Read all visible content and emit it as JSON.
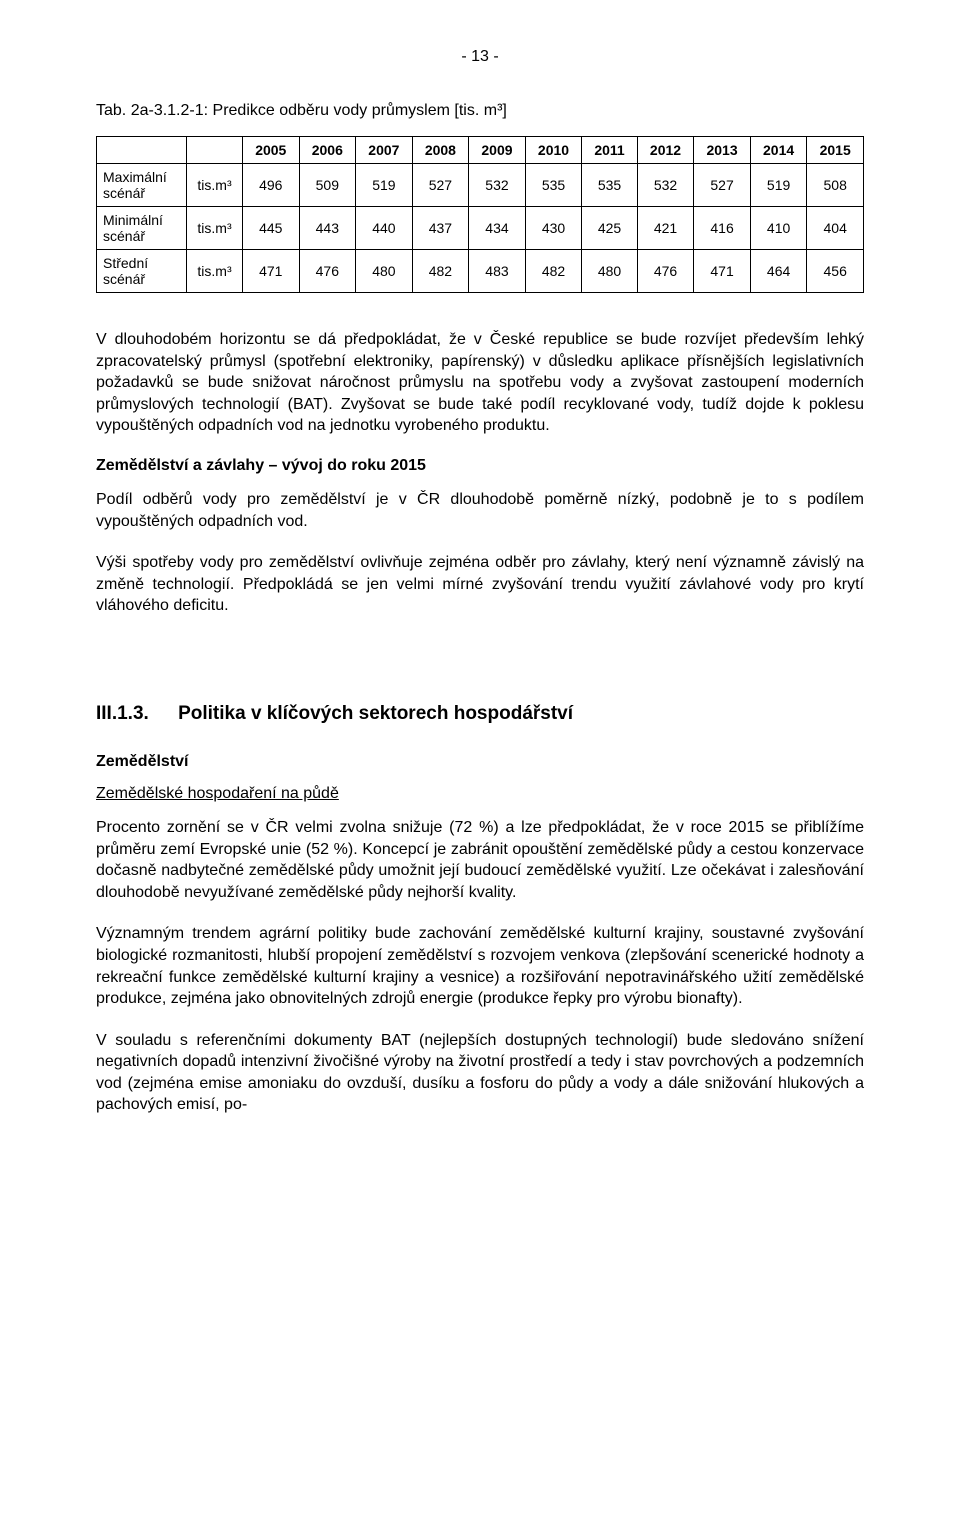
{
  "header": {
    "page_number": "- 13 -"
  },
  "table": {
    "title": "Tab. 2a-3.1.2-1:  Predikce odběru vody průmyslem [tis. m³]",
    "years": [
      "2005",
      "2006",
      "2007",
      "2008",
      "2009",
      "2010",
      "2011",
      "2012",
      "2013",
      "2014",
      "2015"
    ],
    "unit": "tis.m³",
    "rows": [
      {
        "label": "Maximální scénář",
        "values": [
          "496",
          "509",
          "519",
          "527",
          "532",
          "535",
          "535",
          "532",
          "527",
          "519",
          "508"
        ]
      },
      {
        "label": "Minimální scénář",
        "values": [
          "445",
          "443",
          "440",
          "437",
          "434",
          "430",
          "425",
          "421",
          "416",
          "410",
          "404"
        ]
      },
      {
        "label": "Střední scénář",
        "values": [
          "471",
          "476",
          "480",
          "482",
          "483",
          "482",
          "480",
          "476",
          "471",
          "464",
          "456"
        ]
      }
    ]
  },
  "paragraphs": {
    "p1": "V dlouhodobém horizontu se dá předpokládat, že v České republice se bude rozvíjet především lehký zpracovatelský průmysl (spotřební elektroniky, papírenský) v důsledku aplikace přísnějších legislativních požadavků se bude snižovat náročnost průmyslu na spotřebu vody a zvyšovat zastoupení moderních průmyslových technologií (BAT). Zvyšovat se bude také podíl recyklované vody, tudíž dojde k poklesu vypouštěných odpadních vod na jednotku vyrobeného produktu.",
    "h_zemedelstvi_zavlahy": "Zemědělství a závlahy – vývoj do roku 2015",
    "p2": "Podíl odběrů vody pro zemědělství je v ČR dlouhodobě poměrně nízký, podobně je to s podílem vypouštěných odpadních vod.",
    "p3": "Výši spotřeby vody pro zemědělství ovlivňuje zejména odběr pro závlahy, který není významně závislý na změně technologií. Předpokládá se jen velmi mírné zvyšování trendu využití závlahové vody pro krytí vláhového deficitu.",
    "section_number": "III.1.3.",
    "section_title": "Politika v klíčových sektorech hospodářství",
    "sub_zemedelstvi": "Zemědělství",
    "sub_hospodareni": "Zemědělské hospodaření na půdě",
    "p4": "Procento zornění se v ČR velmi zvolna snižuje (72 %) a lze předpokládat, že v roce 2015 se přiblížíme průměru zemí Evropské unie (52 %). Koncepcí je zabránit opouštění zemědělské půdy a cestou konzervace dočasně nadbytečné zemědělské půdy umožnit její budoucí zemědělské využití. Lze očekávat i zalesňování dlouhodobě nevyužívané zemědělské půdy nejhorší kvality.",
    "p5": "Významným trendem agrární politiky bude zachování zemědělské kulturní krajiny, soustavné zvyšování biologické rozmanitosti, hlubší propojení zemědělství s rozvojem venkova (zlepšování scenerické hodnoty a rekreační funkce zemědělské kulturní krajiny a vesnice) a rozšiřování nepotravinářského užití zemědělské produkce, zejména jako obnovitelných zdrojů energie (produkce řepky pro výrobu bionafty).",
    "p6": "V souladu s referenčními dokumenty BAT (nejlepších dostupných technologií) bude sledováno snížení negativních dopadů intenzivní živočišné výroby na životní prostředí a tedy i stav povrchových a podzemních vod (zejména emise amoniaku do ovzduší, dusíku a fosforu do půdy a vody a dále snižování hlukových a pachových emisí, po-"
  }
}
